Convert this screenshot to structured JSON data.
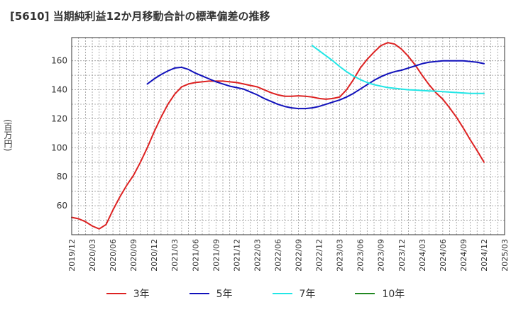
{
  "chart_data": {
    "type": "line",
    "title": "[5610]  当期純利益12か月移動合計の標準偏差の推移",
    "ylabel": "(百万円)",
    "xlabel": "",
    "ylim": [
      40,
      176
    ],
    "yticks": [
      60,
      80,
      100,
      120,
      140,
      160
    ],
    "x_tick_labels": [
      "2019/12",
      "2020/03",
      "2020/06",
      "2020/09",
      "2020/12",
      "2021/03",
      "2021/06",
      "2021/09",
      "2021/12",
      "2022/03",
      "2022/06",
      "2022/09",
      "2022/12",
      "2023/03",
      "2023/06",
      "2023/09",
      "2023/12",
      "2024/03",
      "2024/06",
      "2024/09",
      "2024/12",
      "2025/03"
    ],
    "grid": true,
    "legend_position": "bottom",
    "series": [
      {
        "name": "3年",
        "color": "#dd2222",
        "points": [
          [
            "2019/12",
            52
          ],
          [
            "2020/01",
            51
          ],
          [
            "2020/02",
            49
          ],
          [
            "2020/03",
            46
          ],
          [
            "2020/04",
            44
          ],
          [
            "2020/05",
            47
          ],
          [
            "2020/06",
            57
          ],
          [
            "2020/07",
            66
          ],
          [
            "2020/08",
            74
          ],
          [
            "2020/09",
            81
          ],
          [
            "2020/10",
            90
          ],
          [
            "2020/11",
            100
          ],
          [
            "2020/12",
            111
          ],
          [
            "2021/01",
            121
          ],
          [
            "2021/02",
            130
          ],
          [
            "2021/03",
            137
          ],
          [
            "2021/04",
            142
          ],
          [
            "2021/05",
            144
          ],
          [
            "2021/06",
            145
          ],
          [
            "2021/07",
            145.5
          ],
          [
            "2021/08",
            146
          ],
          [
            "2021/09",
            146
          ],
          [
            "2021/10",
            146
          ],
          [
            "2021/11",
            145.5
          ],
          [
            "2021/12",
            145
          ],
          [
            "2022/01",
            144
          ],
          [
            "2022/02",
            143
          ],
          [
            "2022/03",
            142
          ],
          [
            "2022/04",
            140
          ],
          [
            "2022/05",
            138
          ],
          [
            "2022/06",
            136.5
          ],
          [
            "2022/07",
            135.5
          ],
          [
            "2022/08",
            135.5
          ],
          [
            "2022/09",
            135.8
          ],
          [
            "2022/10",
            135.5
          ],
          [
            "2022/11",
            135
          ],
          [
            "2022/12",
            134
          ],
          [
            "2023/01",
            133.5
          ],
          [
            "2023/02",
            134
          ],
          [
            "2023/03",
            135
          ],
          [
            "2023/04",
            140
          ],
          [
            "2023/05",
            147
          ],
          [
            "2023/06",
            155
          ],
          [
            "2023/07",
            161
          ],
          [
            "2023/08",
            166
          ],
          [
            "2023/09",
            170.5
          ],
          [
            "2023/10",
            172.5
          ],
          [
            "2023/11",
            171.5
          ],
          [
            "2023/12",
            168
          ],
          [
            "2024/01",
            163
          ],
          [
            "2024/02",
            157
          ],
          [
            "2024/03",
            150
          ],
          [
            "2024/04",
            143.5
          ],
          [
            "2024/05",
            138
          ],
          [
            "2024/06",
            133.5
          ],
          [
            "2024/07",
            127.5
          ],
          [
            "2024/08",
            121
          ],
          [
            "2024/09",
            113.5
          ],
          [
            "2024/10",
            105.5
          ],
          [
            "2024/11",
            98
          ],
          [
            "2024/12",
            90
          ]
        ]
      },
      {
        "name": "5年",
        "color": "#1111bb",
        "points": [
          [
            "2020/11",
            144
          ],
          [
            "2020/12",
            147.5
          ],
          [
            "2021/01",
            150.5
          ],
          [
            "2021/02",
            153
          ],
          [
            "2021/03",
            155
          ],
          [
            "2021/04",
            155.5
          ],
          [
            "2021/05",
            154
          ],
          [
            "2021/06",
            151.5
          ],
          [
            "2021/07",
            149.5
          ],
          [
            "2021/08",
            147.5
          ],
          [
            "2021/09",
            145.5
          ],
          [
            "2021/10",
            144
          ],
          [
            "2021/11",
            142.5
          ],
          [
            "2021/12",
            141.5
          ],
          [
            "2022/01",
            140.5
          ],
          [
            "2022/02",
            138.5
          ],
          [
            "2022/03",
            136.5
          ],
          [
            "2022/04",
            134
          ],
          [
            "2022/05",
            132
          ],
          [
            "2022/06",
            130
          ],
          [
            "2022/07",
            128.5
          ],
          [
            "2022/08",
            127.5
          ],
          [
            "2022/09",
            127
          ],
          [
            "2022/10",
            127
          ],
          [
            "2022/11",
            127.5
          ],
          [
            "2022/12",
            128.5
          ],
          [
            "2023/01",
            130
          ],
          [
            "2023/02",
            131.5
          ],
          [
            "2023/03",
            133
          ],
          [
            "2023/04",
            135
          ],
          [
            "2023/05",
            137.5
          ],
          [
            "2023/06",
            140.5
          ],
          [
            "2023/07",
            143.5
          ],
          [
            "2023/08",
            146.5
          ],
          [
            "2023/09",
            149
          ],
          [
            "2023/10",
            151
          ],
          [
            "2023/11",
            152.5
          ],
          [
            "2023/12",
            153.5
          ],
          [
            "2024/01",
            155
          ],
          [
            "2024/02",
            156.5
          ],
          [
            "2024/03",
            158
          ],
          [
            "2024/04",
            159
          ],
          [
            "2024/05",
            159.5
          ],
          [
            "2024/06",
            160
          ],
          [
            "2024/07",
            160
          ],
          [
            "2024/08",
            160
          ],
          [
            "2024/09",
            160
          ],
          [
            "2024/10",
            159.5
          ],
          [
            "2024/11",
            159
          ],
          [
            "2024/12",
            158
          ]
        ]
      },
      {
        "name": "7年",
        "color": "#22e6e6",
        "points": [
          [
            "2022/11",
            170.5
          ],
          [
            "2022/12",
            167
          ],
          [
            "2023/01",
            163.5
          ],
          [
            "2023/02",
            160
          ],
          [
            "2023/03",
            156
          ],
          [
            "2023/04",
            152.5
          ],
          [
            "2023/05",
            149.5
          ],
          [
            "2023/06",
            147
          ],
          [
            "2023/07",
            145
          ],
          [
            "2023/08",
            143.5
          ],
          [
            "2023/09",
            142.5
          ],
          [
            "2023/10",
            141.5
          ],
          [
            "2023/11",
            141
          ],
          [
            "2023/12",
            140.5
          ],
          [
            "2024/01",
            140
          ],
          [
            "2024/02",
            139.8
          ],
          [
            "2024/03",
            139.5
          ],
          [
            "2024/04",
            139.2
          ],
          [
            "2024/05",
            139
          ],
          [
            "2024/06",
            138.7
          ],
          [
            "2024/07",
            138.4
          ],
          [
            "2024/08",
            138.1
          ],
          [
            "2024/09",
            137.8
          ],
          [
            "2024/10",
            137.5
          ],
          [
            "2024/11",
            137.5
          ],
          [
            "2024/12",
            137.5
          ]
        ]
      },
      {
        "name": "10年",
        "color": "#228822",
        "points": []
      }
    ]
  }
}
